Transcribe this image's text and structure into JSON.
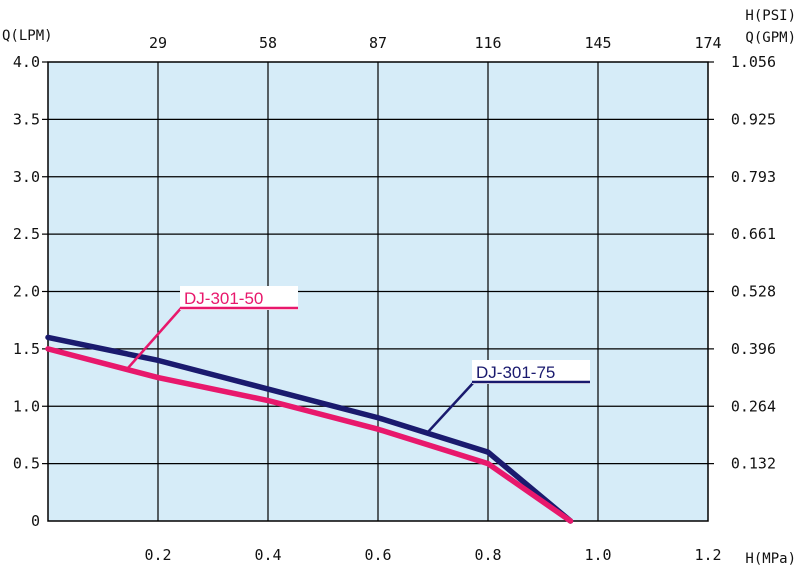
{
  "chart_data": {
    "type": "line",
    "title": "",
    "xlabel": "H(MPa)",
    "ylabel": "Q(LPM)",
    "x2label": "H(PSI)",
    "y2label": "Q(GPM)",
    "xlim": [
      0,
      1.2
    ],
    "ylim": [
      0,
      4.0
    ],
    "grid": true,
    "plot_bg": "#d6ecf8",
    "x_ticks": [
      "0.2",
      "0.4",
      "0.6",
      "0.8",
      "1.0",
      "1.2"
    ],
    "x_tick_values": [
      0.2,
      0.4,
      0.6,
      0.8,
      1.0,
      1.2
    ],
    "y_ticks": [
      "0",
      "0.5",
      "1.0",
      "1.5",
      "2.0",
      "2.5",
      "3.0",
      "3.5",
      "4.0"
    ],
    "y_tick_values": [
      0,
      0.5,
      1.0,
      1.5,
      2.0,
      2.5,
      3.0,
      3.5,
      4.0
    ],
    "x2_ticks": [
      "29",
      "58",
      "87",
      "116",
      "145",
      "174"
    ],
    "y2_ticks": [
      "0.132",
      "0.264",
      "0.396",
      "0.528",
      "0.661",
      "0.793",
      "0.925",
      "1.056"
    ],
    "series": [
      {
        "name": "DJ-301-75",
        "color": "#1a1a6e",
        "x": [
          0,
          0.2,
          0.4,
          0.6,
          0.8,
          0.95
        ],
        "y": [
          1.6,
          1.4,
          1.15,
          0.9,
          0.6,
          0.0
        ]
      },
      {
        "name": "DJ-301-50",
        "color": "#e8186c",
        "x": [
          0,
          0.2,
          0.4,
          0.6,
          0.8,
          0.95
        ],
        "y": [
          1.5,
          1.25,
          1.05,
          0.8,
          0.5,
          0.0
        ]
      }
    ]
  }
}
